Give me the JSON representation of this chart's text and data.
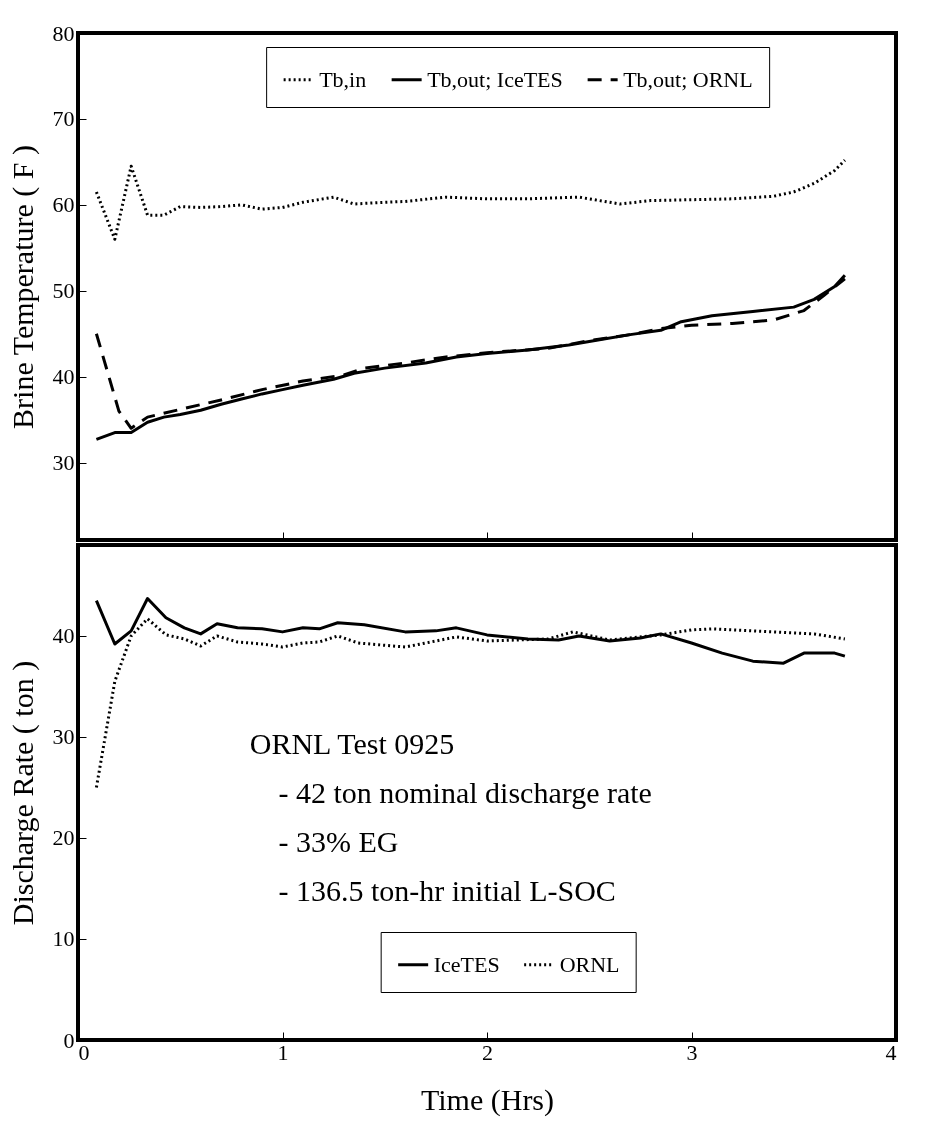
{
  "chart_data": [
    {
      "type": "line",
      "ylabel": "Brine Temperature ( F )",
      "xlim": [
        0,
        4
      ],
      "xticks": [
        0,
        1,
        2,
        3,
        4
      ],
      "ylim": [
        21,
        80
      ],
      "yticks": [
        30,
        40,
        50,
        60,
        70,
        80
      ],
      "tick_labels": "y",
      "grid": false,
      "legend": "top",
      "marker": "none",
      "series": [
        {
          "name": "Tb,in",
          "color": "#000000",
          "line_style": "dotted",
          "x": [
            0.09,
            0.18,
            0.26,
            0.34,
            0.42,
            0.5,
            0.6,
            0.7,
            0.8,
            0.9,
            1.0,
            1.1,
            1.25,
            1.35,
            1.5,
            1.6,
            1.8,
            2.0,
            2.2,
            2.45,
            2.55,
            2.65,
            2.8,
            3.0,
            3.2,
            3.4,
            3.5,
            3.6,
            3.7,
            3.75
          ],
          "values": [
            61.5,
            56,
            64.5,
            58.8,
            58.8,
            59.8,
            59.7,
            59.8,
            60,
            59.5,
            59.7,
            60.3,
            60.9,
            60.1,
            60.3,
            60.4,
            60.9,
            60.7,
            60.7,
            60.9,
            60.5,
            60.1,
            60.5,
            60.6,
            60.7,
            61.0,
            61.5,
            62.5,
            64,
            65.2
          ]
        },
        {
          "name": "Tb,out; IceTES",
          "color": "#000000",
          "line_style": "solid",
          "x": [
            0.09,
            0.18,
            0.26,
            0.34,
            0.42,
            0.5,
            0.6,
            0.7,
            0.8,
            0.9,
            1.0,
            1.1,
            1.25,
            1.35,
            1.5,
            1.7,
            1.85,
            2.0,
            2.2,
            2.4,
            2.55,
            2.7,
            2.85,
            2.95,
            3.1,
            3.3,
            3.5,
            3.6,
            3.7,
            3.75
          ],
          "values": [
            32.7,
            33.5,
            33.5,
            34.7,
            35.3,
            35.6,
            36.1,
            36.8,
            37.4,
            38.0,
            38.5,
            39.0,
            39.7,
            40.4,
            41.0,
            41.6,
            42.3,
            42.7,
            43.1,
            43.7,
            44.3,
            44.9,
            45.4,
            46.4,
            47.1,
            47.6,
            48.1,
            49.0,
            50.5,
            51.8
          ]
        },
        {
          "name": "Tb,out; ORNL",
          "color": "#000000",
          "line_style": "dashed",
          "x": [
            0.09,
            0.2,
            0.26,
            0.34,
            0.5,
            0.7,
            0.9,
            1.1,
            1.3,
            1.4,
            1.6,
            1.8,
            2.0,
            2.3,
            2.5,
            2.7,
            2.85,
            3.0,
            3.2,
            3.4,
            3.55,
            3.65,
            3.75
          ],
          "values": [
            45,
            36,
            34,
            35.3,
            36.2,
            37.3,
            38.5,
            39.5,
            40.2,
            41,
            41.6,
            42.3,
            42.8,
            43.3,
            44.2,
            44.9,
            45.6,
            46.0,
            46.2,
            46.6,
            47.7,
            49.5,
            51.4
          ]
        }
      ]
    },
    {
      "type": "line",
      "xlabel": "Time (Hrs)",
      "ylabel": "Discharge Rate ( ton )",
      "xlim": [
        0,
        4
      ],
      "xticks": [
        0,
        1,
        2,
        3,
        4
      ],
      "ylim": [
        0,
        49
      ],
      "yticks": [
        0,
        10,
        20,
        30,
        40
      ],
      "grid": false,
      "legend": "bottom",
      "marker": "none",
      "annotations": [
        "ORNL Test 0925",
        "- 42 ton nominal discharge rate",
        "- 33% EG",
        "- 136.5 ton-hr initial L-SOC"
      ],
      "series": [
        {
          "name": "IceTES",
          "color": "#000000",
          "line_style": "solid",
          "x": [
            0.09,
            0.18,
            0.26,
            0.34,
            0.43,
            0.52,
            0.6,
            0.68,
            0.78,
            0.9,
            1.0,
            1.1,
            1.18,
            1.27,
            1.4,
            1.6,
            1.75,
            1.85,
            2.0,
            2.2,
            2.35,
            2.45,
            2.6,
            2.75,
            2.85,
            3.0,
            3.15,
            3.3,
            3.45,
            3.55,
            3.7,
            3.75
          ],
          "values": [
            43.5,
            39.2,
            40.5,
            43.7,
            41.8,
            40.8,
            40.2,
            41.2,
            40.8,
            40.7,
            40.4,
            40.8,
            40.7,
            41.3,
            41.1,
            40.4,
            40.5,
            40.8,
            40.1,
            39.7,
            39.6,
            40.0,
            39.5,
            39.8,
            40.2,
            39.3,
            38.3,
            37.5,
            37.3,
            38.3,
            38.3,
            38.0
          ]
        },
        {
          "name": "ORNL",
          "color": "#000000",
          "line_style": "dotted",
          "x": [
            0.09,
            0.18,
            0.26,
            0.34,
            0.43,
            0.52,
            0.6,
            0.68,
            0.78,
            0.9,
            1.0,
            1.1,
            1.18,
            1.27,
            1.37,
            1.6,
            1.85,
            2.0,
            2.3,
            2.42,
            2.6,
            2.85,
            3.0,
            3.1,
            3.4,
            3.6,
            3.75
          ],
          "values": [
            25,
            35.5,
            40,
            41.7,
            40.1,
            39.7,
            39.0,
            40.0,
            39.4,
            39.2,
            38.9,
            39.3,
            39.4,
            40.0,
            39.3,
            38.9,
            39.9,
            39.5,
            39.7,
            40.4,
            39.6,
            40.1,
            40.6,
            40.7,
            40.4,
            40.2,
            39.7
          ]
        }
      ]
    }
  ]
}
